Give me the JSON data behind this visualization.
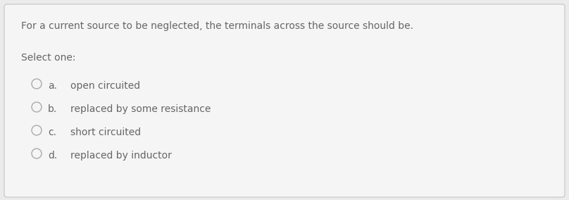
{
  "question": "For a current source to be neglected, the terminals across the source should be.",
  "select_label": "Select one:",
  "options": [
    {
      "letter": "a.",
      "text": "open circuited"
    },
    {
      "letter": "b.",
      "text": "replaced by some resistance"
    },
    {
      "letter": "c.",
      "text": "short circuited"
    },
    {
      "letter": "d.",
      "text": "replaced by inductor"
    }
  ],
  "bg_color": "#ebebeb",
  "card_color": "#f5f5f5",
  "border_color": "#cccccc",
  "text_color": "#666666",
  "question_fontsize": 10,
  "select_fontsize": 10,
  "option_fontsize": 10,
  "circle_color": "#aaaaaa",
  "fig_width": 8.08,
  "fig_height": 2.84,
  "dpi": 100
}
